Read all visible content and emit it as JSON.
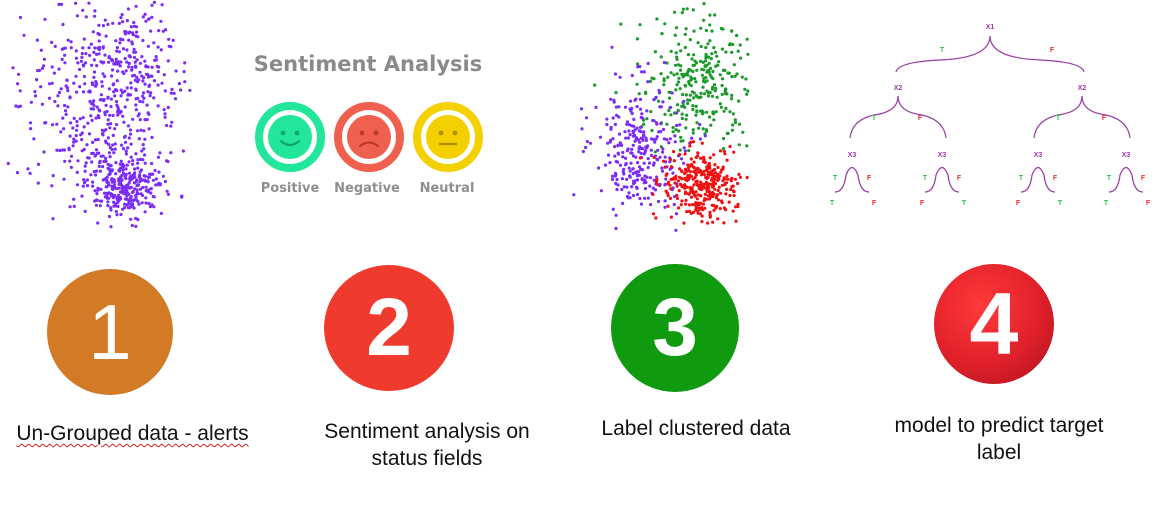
{
  "sentiment": {
    "title": "Sentiment Analysis",
    "faces": [
      {
        "label": "Positive",
        "color": "#22e69a"
      },
      {
        "label": "Negative",
        "color": "#f0604e"
      },
      {
        "label": "Neutral",
        "color": "#f4d000"
      }
    ]
  },
  "scatter_colors": {
    "ungrouped": "#7b2cf5",
    "cluster_a": "#7b2cf5",
    "cluster_b": "#1a9a2a",
    "cluster_c": "#f01010"
  },
  "tree": {
    "root": "X1",
    "level2": [
      "X2",
      "X2"
    ],
    "level3": [
      "X3",
      "X3",
      "X3",
      "X3"
    ],
    "branch_true": "T",
    "branch_false": "F",
    "leaves": [
      "T",
      "F",
      "F",
      "T",
      "F",
      "T",
      "T",
      "F"
    ],
    "true_color": "#22c84a",
    "false_color": "#f03030",
    "edge_color": "#9a3aa8"
  },
  "steps": [
    {
      "number": "1",
      "color": "#d27a26",
      "caption_line1": "Un-Grouped data - alerts",
      "caption_line2": ""
    },
    {
      "number": "2",
      "color": "#ef3a2e",
      "caption_line1": "Sentiment analysis on",
      "caption_line2": "status fields"
    },
    {
      "number": "3",
      "color": "#0f9a10",
      "caption_line1": "Label clustered data",
      "caption_line2": ""
    },
    {
      "number": "4",
      "color": "#e0202a",
      "caption_line1": "model to predict target",
      "caption_line2": "label"
    }
  ]
}
